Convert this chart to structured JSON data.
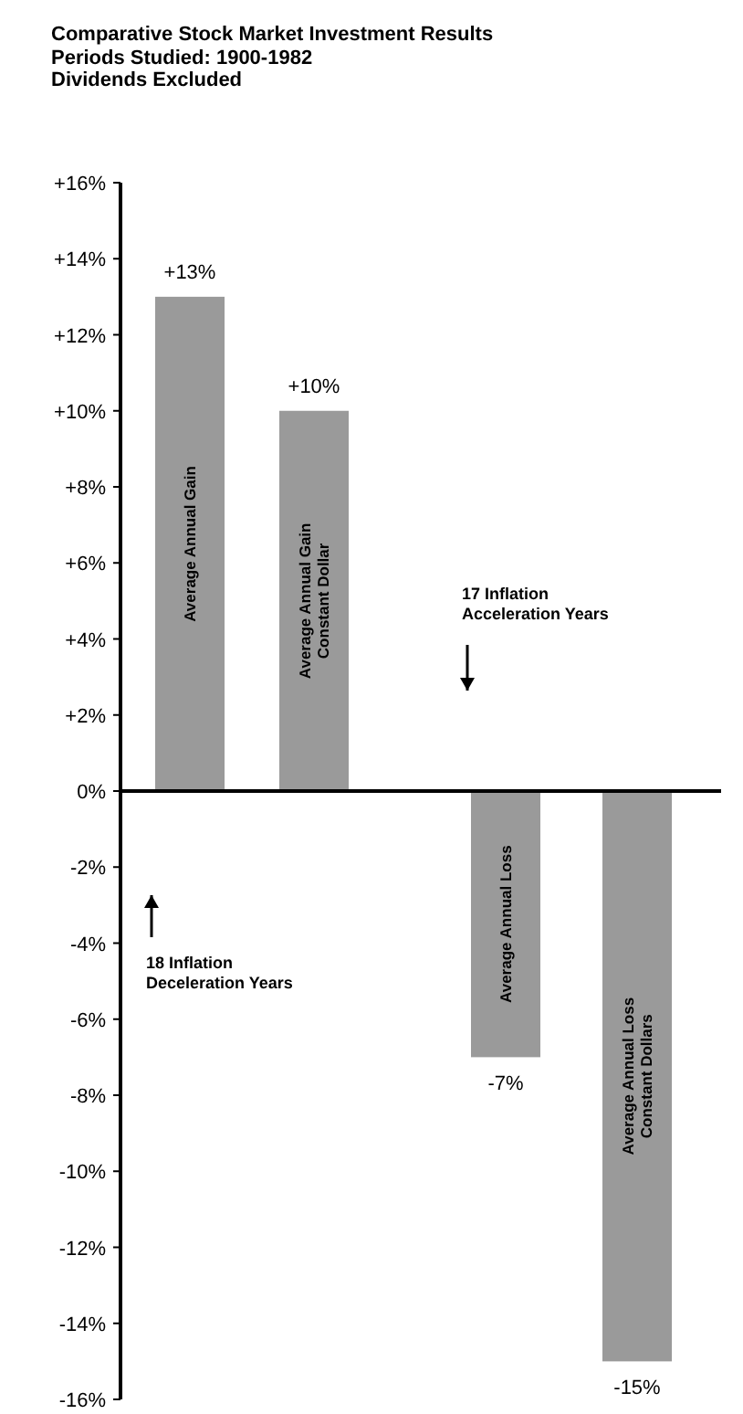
{
  "chart_data": {
    "type": "bar",
    "title": "Comparative Stock Market Investment Results",
    "subtitle": "Periods Studied: 1900-1982\nDividends Excluded",
    "categories": [
      "Average Annual Gain",
      "Average Annual Gain\nConstant Dollar",
      "Average Annual Loss",
      "Average Annual Loss\nConstant Dollars"
    ],
    "values": [
      13,
      10,
      -7,
      -15
    ],
    "color": "#9a9a9a",
    "value_labels": [
      "+13%",
      "+10%",
      "-7%",
      "-15%"
    ],
    "ylim": [
      -16,
      16
    ],
    "yticks": [
      {
        "value": 16,
        "label": "+16%"
      },
      {
        "value": 14,
        "label": "+14%"
      },
      {
        "value": 12,
        "label": "+12%"
      },
      {
        "value": 10,
        "label": "+10%"
      },
      {
        "value": 8,
        "label": "+8%"
      },
      {
        "value": 6,
        "label": "+6%"
      },
      {
        "value": 4,
        "label": "+4%"
      },
      {
        "value": 2,
        "label": "+2%"
      },
      {
        "value": 0,
        "label": "0%"
      },
      {
        "value": -2,
        "label": "-2%"
      },
      {
        "value": -4,
        "label": "-4%"
      },
      {
        "value": -6,
        "label": "-6%"
      },
      {
        "value": -8,
        "label": "-8%"
      },
      {
        "value": -10,
        "label": "-10%"
      },
      {
        "value": -12,
        "label": "-12%"
      },
      {
        "value": -14,
        "label": "-14%"
      },
      {
        "value": -16,
        "label": "-16%"
      }
    ],
    "annotations": [
      "17 Inflation\nAcceleration Years",
      "18 Inflation\nDeceleration Years"
    ]
  }
}
